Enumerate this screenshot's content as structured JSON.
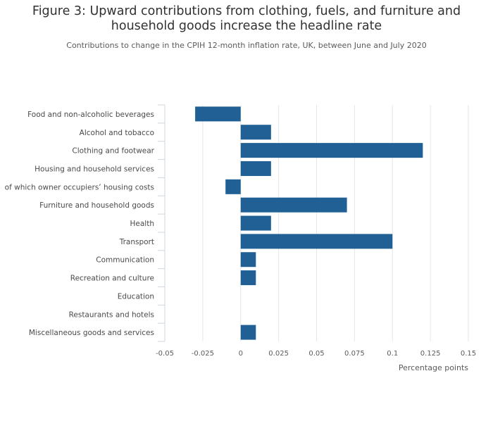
{
  "title": "Figure 3: Upward contributions from clothing, fuels, and furniture and household goods increase the headline rate",
  "subtitle": "Contributions to change in the CPIH 12-month inflation rate, UK, between June and July 2020",
  "chart_data": {
    "type": "bar",
    "orientation": "horizontal",
    "categories": [
      "Food and non-alcoholic beverages",
      "Alcohol and tobacco",
      "Clothing and footwear",
      "Housing and household services",
      "of which owner occupiers’ housing costs",
      "Furniture and household goods",
      "Health",
      "Transport",
      "Communication",
      "Recreation and culture",
      "Education",
      "Restaurants and hotels",
      "Miscellaneous goods and services"
    ],
    "values": [
      -0.03,
      0.02,
      0.12,
      0.02,
      -0.01,
      0.07,
      0.02,
      0.1,
      0.01,
      0.01,
      0,
      0,
      0.01
    ],
    "xlabel": "Percentage points",
    "ylabel": "",
    "xlim": [
      -0.05,
      0.15
    ],
    "ticks": [
      -0.05,
      -0.025,
      0,
      0.025,
      0.05,
      0.075,
      0.1,
      0.125,
      0.15
    ],
    "tick_labels": [
      "-0.05",
      "-0.025",
      "0",
      "0.025",
      "0.05",
      "0.075",
      "0.1",
      "0.125",
      "0.15"
    ],
    "grid": true,
    "colors": {
      "bar": "#206095",
      "grid": "#e6e6e6",
      "axis": "#d0d7de"
    }
  }
}
